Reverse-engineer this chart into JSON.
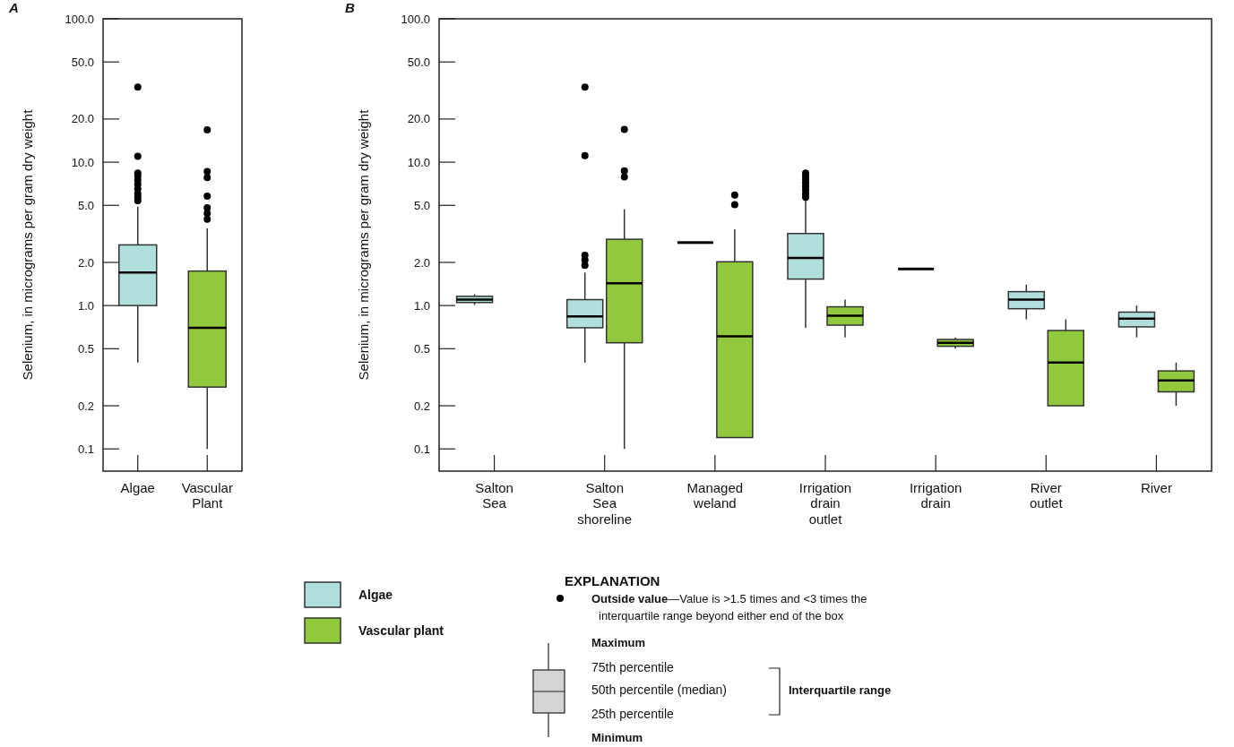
{
  "chart_data": [
    {
      "type": "box",
      "title": "A",
      "ylabel": "Selenium, in micrograms per gram dry weight",
      "log": true,
      "ylim": [
        0.07,
        100
      ],
      "yticks": [
        {
          "value": 100,
          "label": "100.0"
        },
        {
          "value": 50,
          "label": "50.0"
        },
        {
          "value": 20,
          "label": "20.0"
        },
        {
          "value": 10,
          "label": "10.0"
        },
        {
          "value": 5,
          "label": "5.0"
        },
        {
          "value": 2,
          "label": "2.0"
        },
        {
          "value": 1,
          "label": "1.0"
        },
        0.5,
        0.2,
        0.1
      ],
      "categories": [
        "Algae",
        "Vascular Plant"
      ],
      "series": [
        {
          "colors": [
            "#b0dfdc",
            "#92c83e"
          ],
          "boxes": [
            {
              "low": 0.4,
              "q1": 1.0,
              "median": 1.7,
              "q3": 2.65,
              "high": 4.9,
              "outliers": [
                33.4,
                11.0,
                8.4,
                8.0,
                7.5,
                7.0,
                6.5,
                6.0,
                5.7,
                5.4
              ]
            },
            {
              "low": 0.1,
              "q1": 0.27,
              "median": 0.7,
              "q3": 1.74,
              "high": 3.45,
              "outliers": [
                16.8,
                8.6,
                7.8,
                5.8,
                4.8,
                4.4,
                4.0
              ]
            }
          ]
        }
      ]
    },
    {
      "type": "box",
      "title": "B",
      "ylabel": "Selenium, in micrograms per gram dry weight",
      "log": true,
      "ylim": [
        0.07,
        100
      ],
      "yticks": [
        {
          "value": 100,
          "label": "100.0"
        },
        {
          "value": 50,
          "label": "50.0"
        },
        {
          "value": 20,
          "label": "20.0"
        },
        {
          "value": 10,
          "label": "10.0"
        },
        {
          "value": 5,
          "label": "5.0"
        },
        {
          "value": 2,
          "label": "2.0"
        },
        {
          "value": 1,
          "label": "1.0"
        },
        0.5,
        0.2,
        0.1
      ],
      "categories": [
        "Salton Sea",
        "Salton Sea shoreline",
        "Managed weland",
        "Irrigation drain outlet",
        "Irrigation drain",
        "River outlet",
        "River"
      ],
      "legend": "bottom",
      "series": [
        {
          "name": "Algae",
          "color": "#b0dfdc",
          "colors": [
            "#b0dfdc",
            "#b0dfdc",
            "#000000",
            "#b0dfdc",
            "#000000",
            "#b0dfdc",
            "#b0dfdc"
          ],
          "boxes": [
            {
              "low": 1.01,
              "q1": 1.05,
              "median": 1.1,
              "q3": 1.16,
              "high": 1.2
            },
            {
              "low": 0.4,
              "q1": 0.7,
              "median": 0.84,
              "q3": 1.1,
              "high": 1.7,
              "outliers": [
                33.4,
                11.1,
                2.24,
                2.08,
                1.91
              ]
            },
            {
              "low": 2.75,
              "q1": 2.75,
              "median": 2.75,
              "q3": 2.75,
              "high": 2.75
            },
            {
              "low": 0.7,
              "q1": 1.53,
              "median": 2.15,
              "q3": 3.18,
              "high": 5.4,
              "outliers": [
                8.4,
                8.0,
                7.6,
                7.2,
                6.8,
                6.4,
                6.0,
                5.7
              ]
            },
            {
              "low": 1.8,
              "q1": 1.8,
              "median": 1.8,
              "q3": 1.8,
              "high": 1.8
            },
            {
              "low": 0.8,
              "q1": 0.95,
              "median": 1.1,
              "q3": 1.25,
              "high": 1.4
            },
            {
              "low": 0.6,
              "q1": 0.71,
              "median": 0.81,
              "q3": 0.9,
              "high": 1.0
            }
          ]
        },
        {
          "name": "Vascular plant",
          "color": "#92c83e",
          "boxes": [
            null,
            {
              "low": 0.1,
              "q1": 0.55,
              "median": 1.43,
              "q3": 2.9,
              "high": 4.7,
              "outliers": [
                16.9,
                8.7,
                7.9
              ]
            },
            {
              "low": 0.12,
              "q1": 0.12,
              "median": 0.61,
              "q3": 2.02,
              "high": 3.4,
              "outliers": [
                5.9,
                5.05
              ]
            },
            {
              "low": 0.6,
              "q1": 0.73,
              "median": 0.85,
              "q3": 0.98,
              "high": 1.1
            },
            {
              "low": 0.5,
              "q1": 0.52,
              "median": 0.55,
              "q3": 0.58,
              "high": 0.6
            },
            {
              "low": 0.2,
              "q1": 0.2,
              "median": 0.4,
              "q3": 0.67,
              "high": 0.8
            },
            {
              "low": 0.2,
              "q1": 0.25,
              "median": 0.3,
              "q3": 0.35,
              "high": 0.4
            }
          ]
        }
      ],
      "annotations": [
        "EXPLANATION",
        "Outside value—Value is >1.5 times and <3 times the interquartile range beyond either end of the box",
        "Maximum",
        "75th percentile",
        "50th percentile (median)",
        "25th percentile",
        "Minimum",
        "Interquartile range"
      ]
    }
  ]
}
